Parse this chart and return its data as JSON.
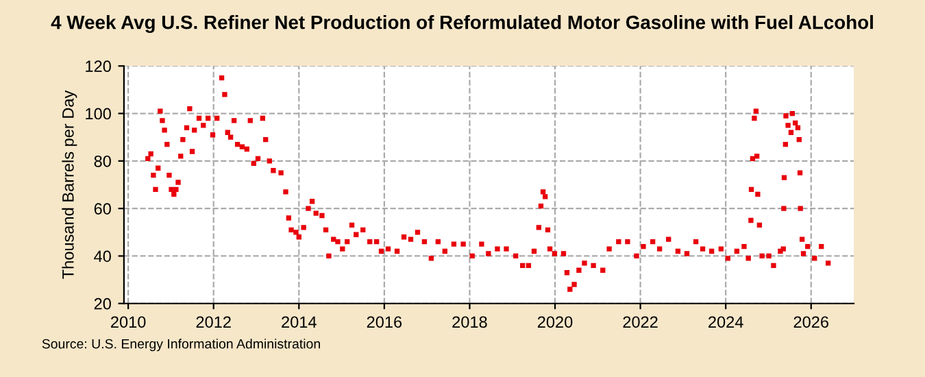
{
  "chart_data": {
    "type": "scatter",
    "title": "4 Week Avg U.S. Refiner Net Production of Reformulated Motor Gasoline with Fuel ALcohol",
    "ylabel": "Thousand Barrels per Day",
    "annotations": [
      "Source: U.S. Energy Information Administration"
    ],
    "series": [
      {
        "color": "#e8000b",
        "x": [
          2010.46,
          2010.53,
          2010.59,
          2010.64,
          2010.7,
          2010.75,
          2010.8,
          2010.85,
          2010.91,
          2010.96,
          2011.01,
          2011.07,
          2011.12,
          2011.17,
          2011.23,
          2011.28,
          2011.37,
          2011.44,
          2011.5,
          2011.55,
          2011.66,
          2011.76,
          2011.87,
          2011.98,
          2012.08,
          2012.19,
          2012.26,
          2012.33,
          2012.4,
          2012.48,
          2012.56,
          2012.67,
          2012.78,
          2012.86,
          2012.94,
          2013.04,
          2013.15,
          2013.22,
          2013.31,
          2013.4,
          2013.58,
          2013.69,
          2013.76,
          2013.82,
          2013.93,
          2014.0,
          2014.11,
          2014.22,
          2014.31,
          2014.4,
          2014.54,
          2014.63,
          2014.7,
          2014.81,
          2014.91,
          2015.02,
          2015.13,
          2015.24,
          2015.34,
          2015.5,
          2015.66,
          2015.82,
          2015.93,
          2016.09,
          2016.3,
          2016.46,
          2016.62,
          2016.78,
          2016.94,
          2017.1,
          2017.26,
          2017.42,
          2017.63,
          2017.85,
          2018.06,
          2018.28,
          2018.44,
          2018.65,
          2018.86,
          2019.08,
          2019.24,
          2019.38,
          2019.51,
          2019.62,
          2019.67,
          2019.72,
          2019.77,
          2019.83,
          2019.88,
          2019.99,
          2020.2,
          2020.28,
          2020.35,
          2020.45,
          2020.56,
          2020.69,
          2020.9,
          2021.12,
          2021.27,
          2021.49,
          2021.7,
          2021.91,
          2022.07,
          2022.29,
          2022.45,
          2022.66,
          2022.88,
          2023.09,
          2023.3,
          2023.46,
          2023.67,
          2023.89,
          2024.05,
          2024.26,
          2024.43,
          2024.53,
          2024.59,
          2024.6,
          2024.63,
          2024.67,
          2024.71,
          2024.73,
          2024.75,
          2024.79,
          2024.85,
          2025.01,
          2025.12,
          2025.28,
          2025.35,
          2025.36,
          2025.37,
          2025.4,
          2025.41,
          2025.46,
          2025.53,
          2025.56,
          2025.63,
          2025.69,
          2025.72,
          2025.74,
          2025.75,
          2025.79,
          2025.82,
          2025.92,
          2026.08,
          2026.24,
          2026.4
        ],
        "values": [
          81,
          83,
          74,
          68,
          77,
          101,
          97,
          93,
          87,
          74,
          68,
          66,
          68,
          71,
          82,
          89,
          94,
          102,
          84,
          93,
          98,
          95,
          98,
          91,
          98,
          115,
          108,
          92,
          90,
          97,
          87,
          86,
          85,
          97,
          79,
          81,
          98,
          89,
          80,
          76,
          75,
          67,
          56,
          51,
          50,
          48,
          52,
          60,
          63,
          58,
          57,
          51,
          40,
          47,
          46,
          43,
          46,
          53,
          49,
          51,
          46,
          46,
          42,
          43,
          42,
          48,
          47,
          50,
          46,
          39,
          46,
          42,
          45,
          45,
          40,
          45,
          41,
          43,
          43,
          40,
          36,
          36,
          42,
          52,
          61,
          67,
          65,
          51,
          43,
          41,
          41,
          33,
          26,
          28,
          34,
          37,
          36,
          34,
          43,
          46,
          46,
          40,
          44,
          46,
          43,
          47,
          42,
          41,
          46,
          43,
          42,
          43,
          39,
          42,
          44,
          39,
          55,
          68,
          81,
          98,
          101,
          82,
          66,
          53,
          40,
          40,
          36,
          42,
          43,
          60,
          73,
          87,
          99,
          95,
          92,
          100,
          96,
          94,
          89,
          75,
          60,
          47,
          41,
          44,
          39,
          44,
          37
        ]
      }
    ],
    "xlim": [
      2009.9,
      2027.0
    ],
    "ylim": [
      20,
      120
    ],
    "xticks": [
      2010,
      2012,
      2014,
      2016,
      2018,
      2020,
      2022,
      2024,
      2026
    ],
    "yticks": [
      20,
      40,
      60,
      80,
      100,
      120
    ],
    "grid": true,
    "marker": "square",
    "legend": false
  }
}
